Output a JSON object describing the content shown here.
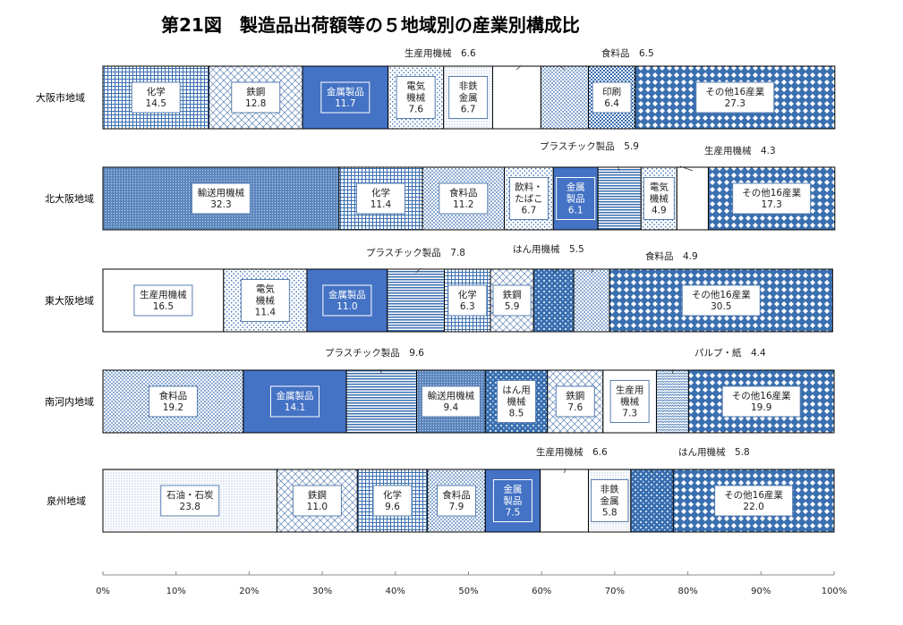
{
  "title": "第21図　製造品出荷額等の５地域別の産業別構成比",
  "chart_data": {
    "type": "bar",
    "orientation": "horizontal",
    "stacked": true,
    "percent": true,
    "xlim": [
      0,
      100
    ],
    "x_ticks": [
      "0%",
      "10%",
      "20%",
      "30%",
      "40%",
      "50%",
      "60%",
      "70%",
      "80%",
      "90%",
      "100%"
    ],
    "colors": {
      "navy_solid": "#4472c4",
      "pattern_blue": "#3a6fb0",
      "grid_fill": "#c9dcef"
    },
    "rows": [
      {
        "region": "大阪市地域",
        "segments": [
          {
            "label": "化学",
            "value": 14.5,
            "value_text": "14.5",
            "pattern": "grid"
          },
          {
            "label": "鉄鋼",
            "value": 12.8,
            "value_text": "12.8",
            "pattern": "weave"
          },
          {
            "label": "金属製品",
            "value": 11.7,
            "value_text": "11.7",
            "pattern": "solid"
          },
          {
            "label": "電気機械",
            "value": 7.6,
            "value_text": "7.6",
            "pattern": "dots-light"
          },
          {
            "label": "非鉄金属",
            "value": 6.7,
            "value_text": "6.7",
            "pattern": "dots-fine"
          },
          {
            "label": "生産用機械",
            "value": 6.6,
            "value_text": "6.6",
            "pattern": "white"
          },
          {
            "label": "食料品",
            "value": 6.5,
            "value_text": "6.5",
            "pattern": "dots"
          },
          {
            "label": "印刷",
            "value": 6.4,
            "value_text": "6.4",
            "pattern": "check"
          },
          {
            "label": "その他16産業",
            "value": 27.3,
            "value_text": "27.3",
            "pattern": "diamond"
          }
        ]
      },
      {
        "region": "北大阪地域",
        "segments": [
          {
            "label": "輸送用機械",
            "value": 32.3,
            "value_text": "32.3",
            "pattern": "dense"
          },
          {
            "label": "化学",
            "value": 11.4,
            "value_text": "11.4",
            "pattern": "grid"
          },
          {
            "label": "食料品",
            "value": 11.2,
            "value_text": "11.2",
            "pattern": "dots"
          },
          {
            "label": "飲料・たばこ",
            "value": 6.7,
            "value_text": "6.7",
            "pattern": "dots-light"
          },
          {
            "label": "金属製品",
            "value": 6.1,
            "value_text": "6.1",
            "pattern": "solid"
          },
          {
            "label": "プラスチック製品",
            "value": 5.9,
            "value_text": "5.9",
            "pattern": "hlines"
          },
          {
            "label": "電気機械",
            "value": 4.9,
            "value_text": "4.9",
            "pattern": "dots-light"
          },
          {
            "label": "生産用機械",
            "value": 4.3,
            "value_text": "4.3",
            "pattern": "white"
          },
          {
            "label": "その他16産業",
            "value": 17.3,
            "value_text": "17.3",
            "pattern": "diamond"
          }
        ]
      },
      {
        "region": "東大阪地域",
        "segments": [
          {
            "label": "生産用機械",
            "value": 16.5,
            "value_text": "16.5",
            "pattern": "white"
          },
          {
            "label": "電気機械",
            "value": 11.4,
            "value_text": "11.4",
            "pattern": "dots-light"
          },
          {
            "label": "金属製品",
            "value": 11.0,
            "value_text": "11.0",
            "pattern": "solid"
          },
          {
            "label": "プラスチック製品",
            "value": 7.8,
            "value_text": "7.8",
            "pattern": "hlines"
          },
          {
            "label": "化学",
            "value": 6.3,
            "value_text": "6.3",
            "pattern": "grid"
          },
          {
            "label": "鉄鋼",
            "value": 5.9,
            "value_text": "5.9",
            "pattern": "weave"
          },
          {
            "label": "はん用機械",
            "value": 5.5,
            "value_text": "5.5",
            "pattern": "vstripes"
          },
          {
            "label": "食料品",
            "value": 4.9,
            "value_text": "4.9",
            "pattern": "dots"
          },
          {
            "label": "その他16産業",
            "value": 30.5,
            "value_text": "30.5",
            "pattern": "diamond"
          }
        ]
      },
      {
        "region": "南河内地域",
        "segments": [
          {
            "label": "食料品",
            "value": 19.2,
            "value_text": "19.2",
            "pattern": "dots"
          },
          {
            "label": "金属製品",
            "value": 14.1,
            "value_text": "14.1",
            "pattern": "solid"
          },
          {
            "label": "プラスチック製品",
            "value": 9.6,
            "value_text": "9.6",
            "pattern": "hlines"
          },
          {
            "label": "輸送用機械",
            "value": 9.4,
            "value_text": "9.4",
            "pattern": "dense"
          },
          {
            "label": "はん用機械",
            "value": 8.5,
            "value_text": "8.5",
            "pattern": "vstripes"
          },
          {
            "label": "鉄鋼",
            "value": 7.6,
            "value_text": "7.6",
            "pattern": "weave"
          },
          {
            "label": "生産用機械",
            "value": 7.3,
            "value_text": "7.3",
            "pattern": "white"
          },
          {
            "label": "パルプ・紙",
            "value": 4.4,
            "value_text": "4.4",
            "pattern": "zigzag"
          },
          {
            "label": "その他16産業",
            "value": 19.9,
            "value_text": "19.9",
            "pattern": "diamond"
          }
        ]
      },
      {
        "region": "泉州地域",
        "segments": [
          {
            "label": "石油・石炭",
            "value": 23.8,
            "value_text": "23.8",
            "pattern": "dots-fine"
          },
          {
            "label": "鉄鋼",
            "value": 11.0,
            "value_text": "11.0",
            "pattern": "weave"
          },
          {
            "label": "化学",
            "value": 9.6,
            "value_text": "9.6",
            "pattern": "grid"
          },
          {
            "label": "食料品",
            "value": 7.9,
            "value_text": "7.9",
            "pattern": "dots"
          },
          {
            "label": "金属製品",
            "value": 7.5,
            "value_text": "7.5",
            "pattern": "solid"
          },
          {
            "label": "生産用機械",
            "value": 6.6,
            "value_text": "6.6",
            "pattern": "white"
          },
          {
            "label": "非鉄金属",
            "value": 5.8,
            "value_text": "5.8",
            "pattern": "dots-fine"
          },
          {
            "label": "はん用機械",
            "value": 5.8,
            "value_text": "5.8",
            "pattern": "vstripes"
          },
          {
            "label": "その他16産業",
            "value": 22.0,
            "value_text": "22.0",
            "pattern": "diamond"
          }
        ]
      }
    ]
  }
}
